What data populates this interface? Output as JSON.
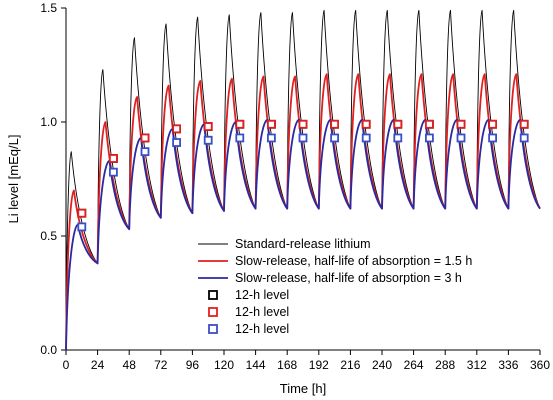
{
  "chart_data": {
    "type": "line",
    "xlabel": "Time [h]",
    "ylabel": "Li level [mEq/L]",
    "xlim": [
      0,
      360
    ],
    "ylim": [
      0,
      1.5
    ],
    "x_ticks": [
      "0",
      "24",
      "48",
      "72",
      "96",
      "120",
      "144",
      "168",
      "192",
      "216",
      "240",
      "264",
      "288",
      "312",
      "336",
      "360"
    ],
    "y_ticks": [
      "0.0",
      "0.5",
      "1.0",
      "1.5"
    ],
    "grid": false,
    "legend_position": "bottom-center",
    "dose_interval_h": 24,
    "series": [
      {
        "name": "Standard-release lithium",
        "color": "#000000",
        "line_width": 0.9,
        "peaks": [
          [
            4,
            0.87
          ],
          [
            28,
            1.23
          ],
          [
            52,
            1.37
          ],
          [
            76,
            1.43
          ],
          [
            100,
            1.46
          ],
          [
            124,
            1.47
          ],
          [
            148,
            1.48
          ],
          [
            172,
            1.48
          ],
          [
            196,
            1.49
          ],
          [
            220,
            1.49
          ],
          [
            244,
            1.49
          ],
          [
            268,
            1.49
          ],
          [
            292,
            1.49
          ],
          [
            316,
            1.49
          ],
          [
            340,
            1.49
          ]
        ],
        "troughs": [
          [
            24,
            0.38
          ],
          [
            48,
            0.53
          ],
          [
            72,
            0.58
          ],
          [
            96,
            0.6
          ],
          [
            120,
            0.61
          ],
          [
            144,
            0.62
          ],
          [
            168,
            0.62
          ],
          [
            192,
            0.62
          ],
          [
            216,
            0.62
          ],
          [
            240,
            0.62
          ],
          [
            264,
            0.62
          ],
          [
            288,
            0.62
          ],
          [
            312,
            0.62
          ],
          [
            336,
            0.62
          ],
          [
            360,
            0.62
          ]
        ]
      },
      {
        "name": "Slow-release, half-life of absorption = 1.5 h",
        "color": "#e02020",
        "line_width": 1.8,
        "peaks": [
          [
            6,
            0.7
          ],
          [
            30,
            1.0
          ],
          [
            54,
            1.11
          ],
          [
            78,
            1.16
          ],
          [
            102,
            1.18
          ],
          [
            126,
            1.19
          ],
          [
            150,
            1.2
          ],
          [
            174,
            1.2
          ],
          [
            198,
            1.21
          ],
          [
            222,
            1.21
          ],
          [
            246,
            1.21
          ],
          [
            270,
            1.21
          ],
          [
            294,
            1.21
          ],
          [
            318,
            1.21
          ],
          [
            342,
            1.21
          ]
        ],
        "troughs": [
          [
            24,
            0.38
          ],
          [
            48,
            0.53
          ],
          [
            72,
            0.58
          ],
          [
            96,
            0.6
          ],
          [
            120,
            0.61
          ],
          [
            144,
            0.62
          ],
          [
            168,
            0.62
          ],
          [
            192,
            0.62
          ],
          [
            216,
            0.62
          ],
          [
            240,
            0.62
          ],
          [
            264,
            0.62
          ],
          [
            288,
            0.62
          ],
          [
            312,
            0.62
          ],
          [
            336,
            0.62
          ],
          [
            360,
            0.62
          ]
        ]
      },
      {
        "name": "Slow-release, half-life of absorption = 3 h",
        "color": "#2a2aa0",
        "line_width": 1.8,
        "peaks": [
          [
            9,
            0.55
          ],
          [
            33,
            0.83
          ],
          [
            57,
            0.93
          ],
          [
            81,
            0.97
          ],
          [
            105,
            0.99
          ],
          [
            129,
            1.0
          ],
          [
            153,
            1.01
          ],
          [
            177,
            1.01
          ],
          [
            201,
            1.01
          ],
          [
            225,
            1.01
          ],
          [
            249,
            1.01
          ],
          [
            273,
            1.01
          ],
          [
            297,
            1.01
          ],
          [
            321,
            1.01
          ],
          [
            345,
            1.01
          ]
        ],
        "troughs": [
          [
            24,
            0.38
          ],
          [
            48,
            0.53
          ],
          [
            72,
            0.58
          ],
          [
            96,
            0.6
          ],
          [
            120,
            0.61
          ],
          [
            144,
            0.62
          ],
          [
            168,
            0.62
          ],
          [
            192,
            0.62
          ],
          [
            216,
            0.62
          ],
          [
            240,
            0.62
          ],
          [
            264,
            0.62
          ],
          [
            288,
            0.62
          ],
          [
            312,
            0.62
          ],
          [
            336,
            0.62
          ],
          [
            360,
            0.62
          ]
        ]
      }
    ],
    "markers": [
      {
        "name": "12-h level",
        "color": "#000000",
        "points": [
          [
            12,
            0.6
          ],
          [
            36,
            0.84
          ],
          [
            60,
            0.93
          ],
          [
            84,
            0.97
          ],
          [
            108,
            0.98
          ],
          [
            132,
            0.99
          ],
          [
            156,
            0.99
          ],
          [
            180,
            0.99
          ],
          [
            204,
            0.99
          ],
          [
            228,
            0.99
          ],
          [
            252,
            0.99
          ],
          [
            276,
            0.99
          ],
          [
            300,
            0.99
          ],
          [
            324,
            0.99
          ],
          [
            348,
            0.99
          ]
        ]
      },
      {
        "name": "12-h level",
        "color": "#e02020",
        "points": [
          [
            12,
            0.6
          ],
          [
            36,
            0.84
          ],
          [
            60,
            0.93
          ],
          [
            84,
            0.97
          ],
          [
            108,
            0.98
          ],
          [
            132,
            0.99
          ],
          [
            156,
            0.99
          ],
          [
            180,
            0.99
          ],
          [
            204,
            0.99
          ],
          [
            228,
            0.99
          ],
          [
            252,
            0.99
          ],
          [
            276,
            0.99
          ],
          [
            300,
            0.99
          ],
          [
            324,
            0.99
          ],
          [
            348,
            0.99
          ]
        ]
      },
      {
        "name": "12-h level",
        "color": "#3a4ec8",
        "points": [
          [
            12,
            0.54
          ],
          [
            36,
            0.78
          ],
          [
            60,
            0.87
          ],
          [
            84,
            0.91
          ],
          [
            108,
            0.92
          ],
          [
            132,
            0.93
          ],
          [
            156,
            0.93
          ],
          [
            180,
            0.93
          ],
          [
            204,
            0.93
          ],
          [
            228,
            0.93
          ],
          [
            252,
            0.93
          ],
          [
            276,
            0.93
          ],
          [
            300,
            0.93
          ],
          [
            324,
            0.93
          ],
          [
            348,
            0.93
          ]
        ]
      }
    ]
  }
}
